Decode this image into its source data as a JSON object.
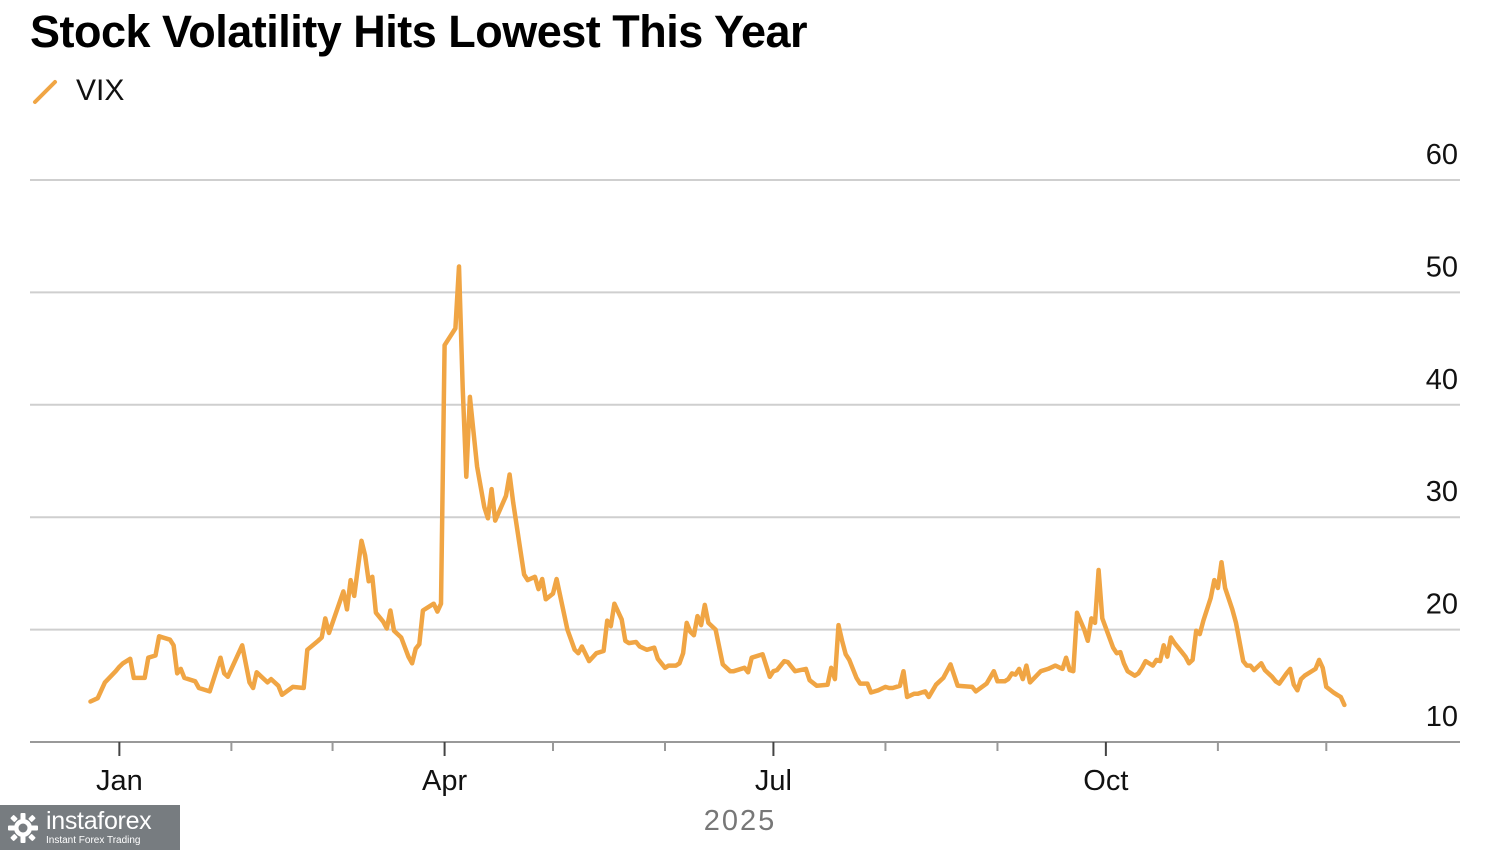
{
  "title": "Stock Volatility Hits Lowest This Year",
  "legend": {
    "label": "VIX",
    "color": "#f0a544"
  },
  "chart_data": {
    "type": "line",
    "title": "Stock Volatility Hits Lowest This Year",
    "xlabel": "2025",
    "ylabel": "",
    "ylim": [
      10,
      60
    ],
    "yticks": [
      10,
      20,
      30,
      40,
      50,
      60
    ],
    "x_tick_labels": [
      {
        "label": "Jan",
        "day": 0
      },
      {
        "label": "Apr",
        "day": 90
      },
      {
        "label": "Jul",
        "day": 181
      },
      {
        "label": "Oct",
        "day": 273
      }
    ],
    "x_minor_ticks": [
      31,
      59,
      120,
      151,
      212,
      243,
      304,
      334
    ],
    "x_range": [
      -12,
      371
    ],
    "grid": true,
    "series": [
      {
        "name": "VIX",
        "color": "#f0a544",
        "points": [
          [
            -8,
            13.6
          ],
          [
            -6,
            13.9
          ],
          [
            -4,
            15.3
          ],
          [
            -1,
            16.3
          ],
          [
            0,
            16.7
          ],
          [
            1,
            17.0
          ],
          [
            3,
            17.4
          ],
          [
            4,
            15.7
          ],
          [
            7,
            15.7
          ],
          [
            8,
            17.5
          ],
          [
            10,
            17.7
          ],
          [
            11,
            19.4
          ],
          [
            14,
            19.1
          ],
          [
            15,
            18.6
          ],
          [
            16,
            16.1
          ],
          [
            17,
            16.5
          ],
          [
            18,
            15.7
          ],
          [
            21,
            15.4
          ],
          [
            22,
            14.8
          ],
          [
            25,
            14.5
          ],
          [
            28,
            17.5
          ],
          [
            29,
            16.1
          ],
          [
            30,
            15.8
          ],
          [
            31,
            16.5
          ],
          [
            34,
            18.6
          ],
          [
            36,
            15.3
          ],
          [
            37,
            14.8
          ],
          [
            38,
            16.2
          ],
          [
            41,
            15.3
          ],
          [
            42,
            15.6
          ],
          [
            44,
            15.0
          ],
          [
            45,
            14.2
          ],
          [
            48,
            14.9
          ],
          [
            51,
            14.8
          ],
          [
            52,
            18.2
          ],
          [
            55,
            19.0
          ],
          [
            56,
            19.3
          ],
          [
            57,
            21.0
          ],
          [
            58,
            19.7
          ],
          [
            62,
            23.4
          ],
          [
            63,
            21.8
          ],
          [
            64,
            24.4
          ],
          [
            65,
            23.0
          ],
          [
            67,
            27.9
          ],
          [
            68,
            26.6
          ],
          [
            69,
            24.3
          ],
          [
            70,
            24.7
          ],
          [
            71,
            21.5
          ],
          [
            73,
            20.7
          ],
          [
            74,
            20.1
          ],
          [
            75,
            21.7
          ],
          [
            76,
            19.9
          ],
          [
            78,
            19.3
          ],
          [
            80,
            17.6
          ],
          [
            81,
            17.0
          ],
          [
            82,
            18.3
          ],
          [
            83,
            18.7
          ],
          [
            84,
            21.7
          ],
          [
            87,
            22.3
          ],
          [
            88,
            21.6
          ],
          [
            89,
            22.3
          ],
          [
            90,
            45.3
          ],
          [
            93,
            46.8
          ],
          [
            94,
            52.3
          ],
          [
            95,
            41.5
          ],
          [
            96,
            33.6
          ],
          [
            97,
            40.7
          ],
          [
            98,
            37.6
          ],
          [
            99,
            34.5
          ],
          [
            101,
            30.9
          ],
          [
            102,
            29.9
          ],
          [
            103,
            32.5
          ],
          [
            104,
            29.7
          ],
          [
            107,
            31.9
          ],
          [
            108,
            33.8
          ],
          [
            109,
            31.3
          ],
          [
            111,
            27.0
          ],
          [
            112,
            24.9
          ],
          [
            113,
            24.4
          ],
          [
            115,
            24.7
          ],
          [
            116,
            23.6
          ],
          [
            117,
            24.5
          ],
          [
            118,
            22.7
          ],
          [
            120,
            23.2
          ],
          [
            121,
            24.5
          ],
          [
            124,
            20.0
          ],
          [
            126,
            18.2
          ],
          [
            127,
            17.9
          ],
          [
            128,
            18.5
          ],
          [
            130,
            17.2
          ],
          [
            132,
            17.9
          ],
          [
            134,
            18.1
          ],
          [
            135,
            20.8
          ],
          [
            136,
            20.3
          ],
          [
            137,
            22.3
          ],
          [
            139,
            20.9
          ],
          [
            140,
            19.0
          ],
          [
            141,
            18.8
          ],
          [
            143,
            18.9
          ],
          [
            144,
            18.5
          ],
          [
            146,
            18.2
          ],
          [
            148,
            18.4
          ],
          [
            149,
            17.4
          ],
          [
            151,
            16.6
          ],
          [
            152,
            16.8
          ],
          [
            154,
            16.8
          ],
          [
            155,
            17.0
          ],
          [
            156,
            17.9
          ],
          [
            157,
            20.6
          ],
          [
            158,
            19.8
          ],
          [
            159,
            19.5
          ],
          [
            160,
            21.2
          ],
          [
            161,
            20.4
          ],
          [
            162,
            22.2
          ],
          [
            163,
            20.6
          ],
          [
            165,
            20.0
          ],
          [
            167,
            16.9
          ],
          [
            169,
            16.3
          ],
          [
            170,
            16.3
          ],
          [
            173,
            16.6
          ],
          [
            174,
            16.2
          ],
          [
            175,
            17.5
          ],
          [
            178,
            17.8
          ],
          [
            179,
            16.8
          ],
          [
            180,
            15.8
          ],
          [
            181,
            16.3
          ],
          [
            182,
            16.4
          ],
          [
            184,
            17.2
          ],
          [
            185,
            17.1
          ],
          [
            187,
            16.3
          ],
          [
            190,
            16.5
          ],
          [
            191,
            15.5
          ],
          [
            193,
            15.0
          ],
          [
            196,
            15.1
          ],
          [
            197,
            16.6
          ],
          [
            198,
            15.6
          ],
          [
            199,
            20.4
          ],
          [
            200,
            19.0
          ],
          [
            201,
            17.8
          ],
          [
            202,
            17.3
          ],
          [
            204,
            15.7
          ],
          [
            205,
            15.2
          ],
          [
            207,
            15.2
          ],
          [
            208,
            14.4
          ],
          [
            210,
            14.6
          ],
          [
            212,
            14.9
          ],
          [
            213,
            14.8
          ],
          [
            214,
            14.8
          ],
          [
            216,
            15.0
          ],
          [
            217,
            16.3
          ],
          [
            218,
            14.0
          ],
          [
            220,
            14.3
          ],
          [
            221,
            14.3
          ],
          [
            223,
            14.5
          ],
          [
            224,
            14.0
          ],
          [
            226,
            15.1
          ],
          [
            228,
            15.7
          ],
          [
            230,
            16.9
          ],
          [
            232,
            15.0
          ],
          [
            236,
            14.9
          ],
          [
            237,
            14.5
          ],
          [
            240,
            15.2
          ],
          [
            242,
            16.3
          ],
          [
            243,
            15.4
          ],
          [
            245,
            15.4
          ],
          [
            246,
            15.6
          ],
          [
            247,
            16.1
          ],
          [
            248,
            16.0
          ],
          [
            249,
            16.5
          ],
          [
            250,
            15.6
          ],
          [
            251,
            16.8
          ],
          [
            252,
            15.3
          ],
          [
            255,
            16.3
          ],
          [
            257,
            16.5
          ],
          [
            259,
            16.8
          ],
          [
            261,
            16.5
          ],
          [
            262,
            17.5
          ],
          [
            263,
            16.4
          ],
          [
            264,
            16.3
          ],
          [
            265,
            21.5
          ],
          [
            267,
            20.0
          ],
          [
            268,
            19.0
          ],
          [
            269,
            21.0
          ],
          [
            270,
            20.6
          ],
          [
            271,
            25.3
          ],
          [
            272,
            21.0
          ],
          [
            275,
            18.4
          ],
          [
            276,
            17.9
          ],
          [
            277,
            18.0
          ],
          [
            278,
            17.0
          ],
          [
            279,
            16.3
          ],
          [
            281,
            15.9
          ],
          [
            282,
            16.1
          ],
          [
            283,
            16.6
          ],
          [
            284,
            17.2
          ],
          [
            286,
            16.8
          ],
          [
            287,
            17.3
          ],
          [
            288,
            17.2
          ],
          [
            289,
            18.6
          ],
          [
            290,
            17.6
          ],
          [
            291,
            19.3
          ],
          [
            292,
            18.8
          ],
          [
            294,
            18.0
          ],
          [
            295,
            17.6
          ],
          [
            296,
            17.0
          ],
          [
            297,
            17.3
          ],
          [
            298,
            19.9
          ],
          [
            299,
            19.6
          ],
          [
            300,
            20.8
          ],
          [
            302,
            22.8
          ],
          [
            303,
            24.4
          ],
          [
            304,
            23.7
          ],
          [
            305,
            26.0
          ],
          [
            306,
            23.7
          ],
          [
            308,
            21.8
          ],
          [
            309,
            20.6
          ],
          [
            311,
            17.2
          ],
          [
            312,
            16.8
          ],
          [
            313,
            16.8
          ],
          [
            314,
            16.4
          ],
          [
            316,
            17.0
          ],
          [
            317,
            16.4
          ],
          [
            319,
            15.8
          ],
          [
            320,
            15.4
          ],
          [
            321,
            15.2
          ],
          [
            323,
            16.1
          ],
          [
            324,
            16.5
          ],
          [
            325,
            15.1
          ],
          [
            326,
            14.6
          ],
          [
            327,
            15.6
          ],
          [
            328,
            15.9
          ],
          [
            331,
            16.5
          ],
          [
            332,
            17.3
          ],
          [
            333,
            16.6
          ],
          [
            334,
            14.9
          ],
          [
            336,
            14.4
          ],
          [
            337,
            14.2
          ],
          [
            338,
            14.0
          ],
          [
            339,
            13.3
          ]
        ]
      }
    ]
  },
  "watermark": {
    "brand": "instaforex",
    "tagline": "Instant Forex Trading"
  }
}
